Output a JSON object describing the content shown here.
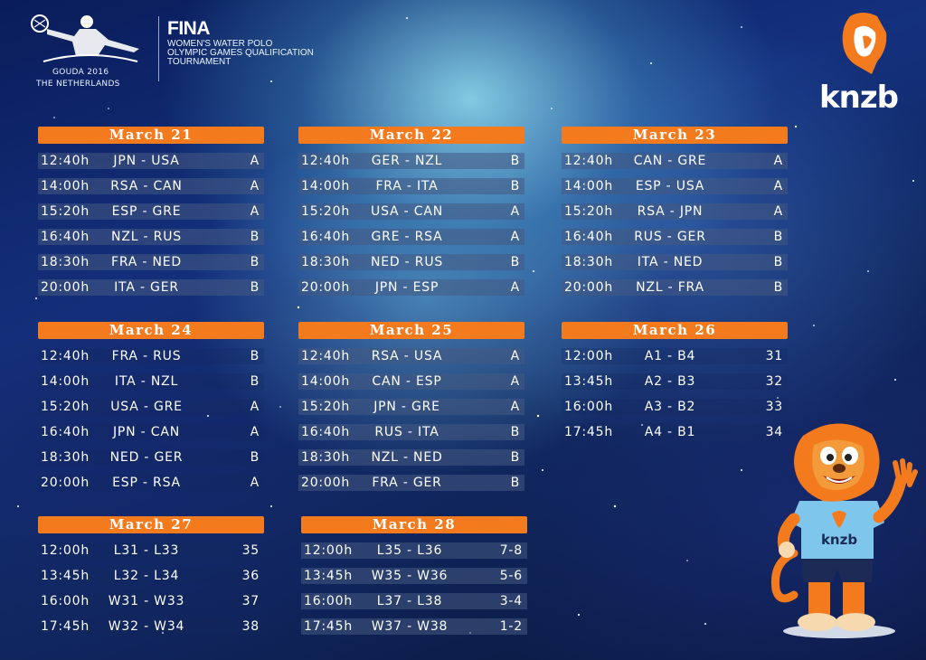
{
  "header": {
    "logo_city": "GOUDA 2016",
    "logo_country": "THE NETHERLANDS",
    "fina_brand": "FINA",
    "title_lines": [
      "WOMEN'S WATER POLO",
      "OLYMPIC GAMES QUALIFICATION",
      "TOURNAMENT"
    ],
    "knzb": "knzb"
  },
  "colors": {
    "accent": "#f47a1e",
    "background": "#122c72"
  },
  "days": [
    {
      "date": "March 21",
      "games": [
        {
          "time": "12:40h",
          "match": "JPN - USA",
          "group": "A"
        },
        {
          "time": "14:00h",
          "match": "RSA - CAN",
          "group": "A"
        },
        {
          "time": "15:20h",
          "match": "ESP - GRE",
          "group": "A"
        },
        {
          "time": "16:40h",
          "match": "NZL - RUS",
          "group": "B"
        },
        {
          "time": "18:30h",
          "match": "FRA - NED",
          "group": "B"
        },
        {
          "time": "20:00h",
          "match": "ITA - GER",
          "group": "B"
        }
      ]
    },
    {
      "date": "March 22",
      "games": [
        {
          "time": "12:40h",
          "match": "GER - NZL",
          "group": "B"
        },
        {
          "time": "14:00h",
          "match": "FRA - ITA",
          "group": "B"
        },
        {
          "time": "15:20h",
          "match": "USA - CAN",
          "group": "A"
        },
        {
          "time": "16:40h",
          "match": "GRE - RSA",
          "group": "A"
        },
        {
          "time": "18:30h",
          "match": "NED - RUS",
          "group": "B"
        },
        {
          "time": "20:00h",
          "match": "JPN - ESP",
          "group": "A"
        }
      ]
    },
    {
      "date": "March 23",
      "games": [
        {
          "time": "12:40h",
          "match": "CAN - GRE",
          "group": "A"
        },
        {
          "time": "14:00h",
          "match": "ESP - USA",
          "group": "A"
        },
        {
          "time": "15:20h",
          "match": "RSA - JPN",
          "group": "A"
        },
        {
          "time": "16:40h",
          "match": "RUS - GER",
          "group": "B"
        },
        {
          "time": "18:30h",
          "match": "ITA - NED",
          "group": "B"
        },
        {
          "time": "20:00h",
          "match": "NZL - FRA",
          "group": "B"
        }
      ]
    },
    {
      "date": "March 24",
      "games": [
        {
          "time": "12:40h",
          "match": "FRA - RUS",
          "group": "B"
        },
        {
          "time": "14:00h",
          "match": "ITA - NZL",
          "group": "B"
        },
        {
          "time": "15:20h",
          "match": "USA - GRE",
          "group": "A"
        },
        {
          "time": "16:40h",
          "match": "JPN - CAN",
          "group": "A"
        },
        {
          "time": "18:30h",
          "match": "NED - GER",
          "group": "B"
        },
        {
          "time": "20:00h",
          "match": "ESP - RSA",
          "group": "A"
        }
      ]
    },
    {
      "date": "March 25",
      "games": [
        {
          "time": "12:40h",
          "match": "RSA - USA",
          "group": "A"
        },
        {
          "time": "14:00h",
          "match": "CAN - ESP",
          "group": "A"
        },
        {
          "time": "15:20h",
          "match": "JPN - GRE",
          "group": "A"
        },
        {
          "time": "16:40h",
          "match": "RUS - ITA",
          "group": "B"
        },
        {
          "time": "18:30h",
          "match": "NZL - NED",
          "group": "B"
        },
        {
          "time": "20:00h",
          "match": "FRA - GER",
          "group": "B"
        }
      ]
    },
    {
      "date": "March 26",
      "games": [
        {
          "time": "12:00h",
          "match": "A1 - B4",
          "group": "31"
        },
        {
          "time": "13:45h",
          "match": "A2 - B3",
          "group": "32"
        },
        {
          "time": "16:00h",
          "match": "A3 - B2",
          "group": "33"
        },
        {
          "time": "17:45h",
          "match": "A4 - B1",
          "group": "34"
        }
      ]
    },
    {
      "date": "March 27",
      "games": [
        {
          "time": "12:00h",
          "match": "L31 - L33",
          "group": "35"
        },
        {
          "time": "13:45h",
          "match": "L32 - L34",
          "group": "36"
        },
        {
          "time": "16:00h",
          "match": "W31 - W33",
          "group": "37"
        },
        {
          "time": "17:45h",
          "match": "W32 - W34",
          "group": "38"
        }
      ]
    },
    {
      "date": "March 28",
      "games": [
        {
          "time": "12:00h",
          "match": "L35 - L36",
          "group": "7-8"
        },
        {
          "time": "13:45h",
          "match": "W35 - W36",
          "group": "5-6"
        },
        {
          "time": "16:00h",
          "match": "L37 - L38",
          "group": "3-4"
        },
        {
          "time": "17:45h",
          "match": "W37 - W38",
          "group": "1-2"
        }
      ]
    }
  ],
  "mascot": {
    "shirt_text": "knzb"
  }
}
